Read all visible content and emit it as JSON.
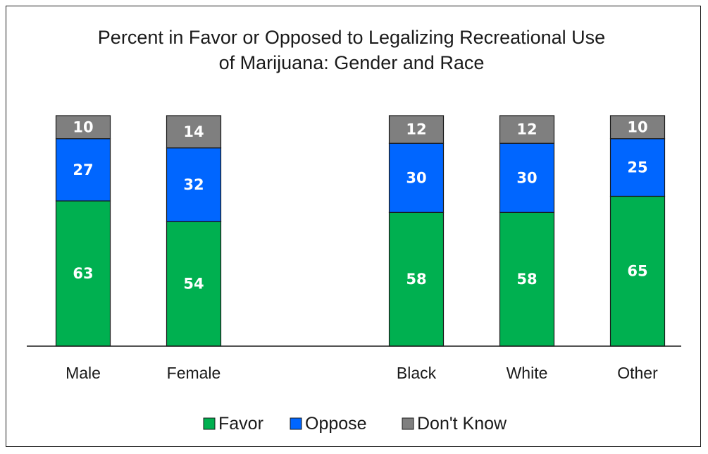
{
  "chart_data": {
    "type": "bar",
    "stacked": true,
    "title": "Percent in Favor or Opposed to Legalizing Recreational Use of Marijuana: Gender and Race",
    "title_lines": [
      "Percent in Favor or Opposed to Legalizing Recreational Use",
      "of Marijuana: Gender and Race"
    ],
    "categories": [
      "Male",
      "Female",
      "Black",
      "White",
      "Other"
    ],
    "category_groups": [
      [
        "Male",
        "Female"
      ],
      [
        "Black",
        "White",
        "Other"
      ]
    ],
    "series": [
      {
        "name": "Favor",
        "color": "#00b050",
        "values": [
          63,
          54,
          58,
          58,
          65
        ]
      },
      {
        "name": "Oppose",
        "color": "#0066ff",
        "values": [
          27,
          32,
          30,
          30,
          25
        ]
      },
      {
        "name": "Don't Know",
        "color": "#7f7f7f",
        "values": [
          10,
          14,
          12,
          12,
          10
        ]
      }
    ],
    "ylim": [
      0,
      100
    ],
    "grid": false,
    "legend_position": "bottom",
    "data_labels": true
  }
}
